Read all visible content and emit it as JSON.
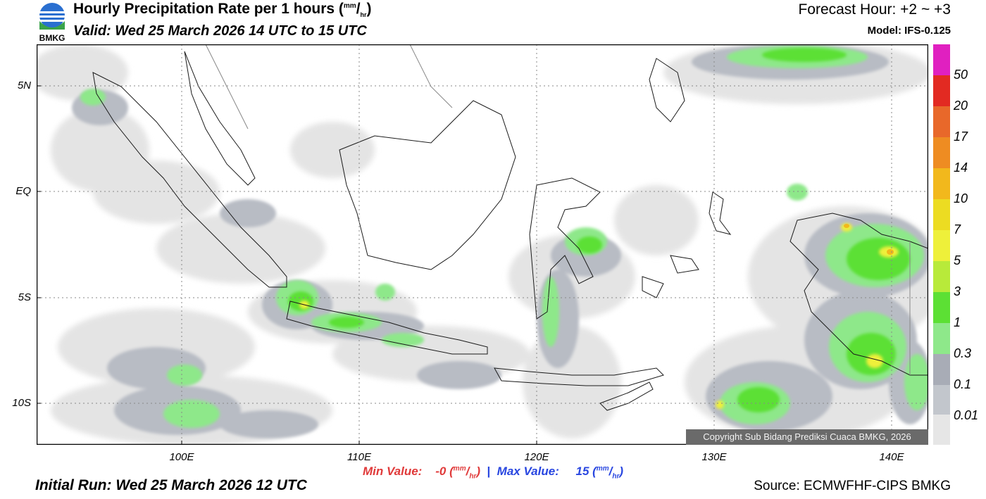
{
  "header": {
    "logo_text": "BMKG",
    "title_main": "Hourly Precipitation Rate per 1 hours (",
    "title_unit_sup": "mm",
    "title_unit_sub": "hr",
    "title_close": ")",
    "valid": "Valid: Wed 25 March 2026 14 UTC to 15 UTC",
    "forecast_hour": "Forecast Hour: +2 ~ +3",
    "model": "Model: IFS-0.125"
  },
  "map": {
    "lat_labels": [
      "5N",
      "EQ",
      "5S",
      "10S"
    ],
    "lon_labels": [
      "100E",
      "110E",
      "120E",
      "130E",
      "140E"
    ],
    "copyright": "Copyright Sub Bidang Prediksi Cuaca BMKG, 2026"
  },
  "stats": {
    "min_label": "Min Value:",
    "min_value": "-0",
    "sep": "|",
    "max_label": "Max Value:",
    "max_value": "15",
    "unit_sup": "mm",
    "unit_sub": "hr"
  },
  "footer": {
    "initial_run": "Initial Run: Wed 25 March 2026 12 UTC",
    "source": "Source: ECMWFHF-CIPS BMKG"
  },
  "legend": {
    "levels": [
      "50",
      "20",
      "17",
      "14",
      "10",
      "7",
      "5",
      "3",
      "1",
      "0.3",
      "0.1",
      "0.01"
    ],
    "colors": [
      "#e020c0",
      "#e22a22",
      "#e8682a",
      "#ee8c22",
      "#f2b81c",
      "#ecdc22",
      "#eef03a",
      "#b8ea3a",
      "#5ce034",
      "#8ee88a",
      "#a8acb6",
      "#c2c6cc",
      "#e6e6e6"
    ]
  }
}
